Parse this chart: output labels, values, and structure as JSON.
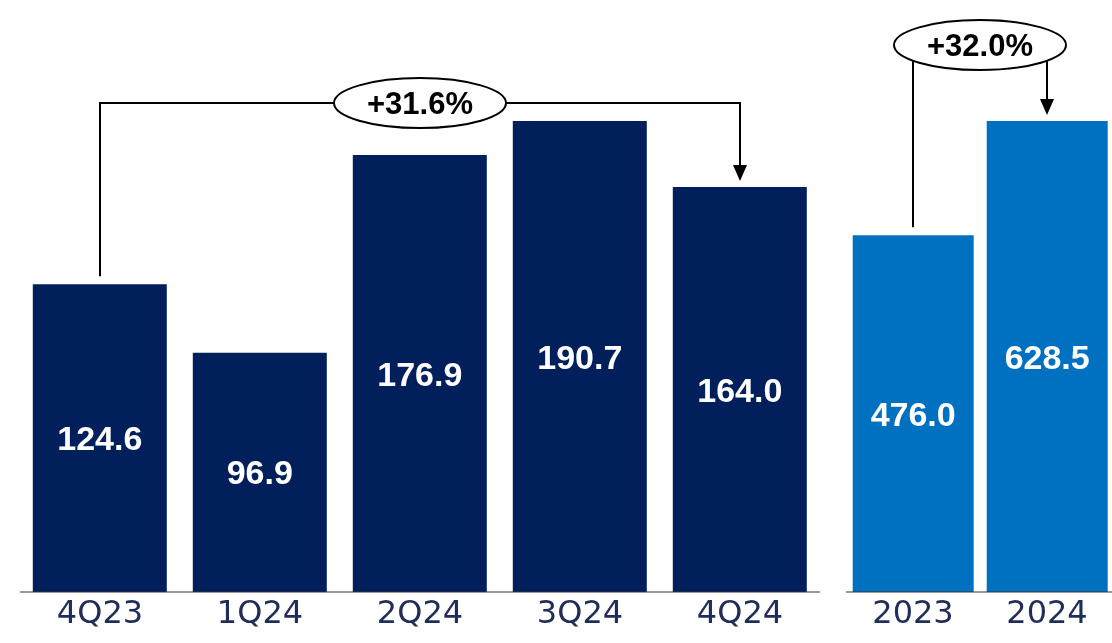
{
  "chart_data": [
    {
      "type": "bar",
      "categories": [
        "4Q23",
        "1Q24",
        "2Q24",
        "3Q24",
        "4Q24"
      ],
      "values": [
        124.6,
        96.9,
        176.9,
        190.7,
        164.0
      ],
      "color": "#001f5b",
      "value_labels": [
        "124.6",
        "96.9",
        "176.9",
        "190.7",
        "164.0"
      ],
      "annotations": [
        "+31.6%"
      ]
    },
    {
      "type": "bar",
      "categories": [
        "2023",
        "2024"
      ],
      "values": [
        476.0,
        628.5
      ],
      "color": "#0070c0",
      "value_labels": [
        "476.0",
        "628.5"
      ],
      "annotations": [
        "+32.0%"
      ]
    }
  ]
}
